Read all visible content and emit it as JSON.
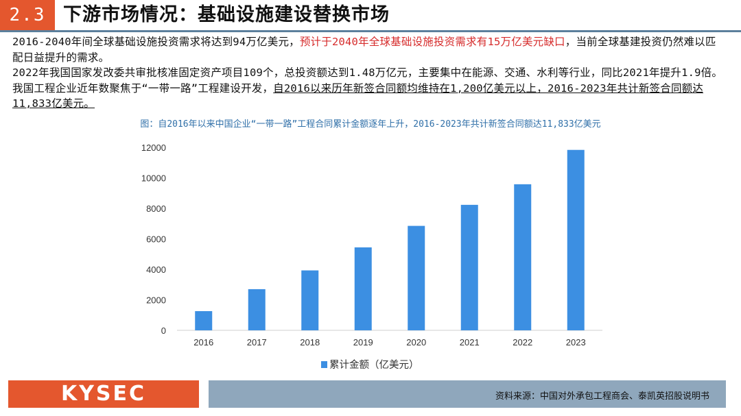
{
  "header": {
    "section_number": "2.3",
    "title": "下游市场情况：基础设施建设替换市场"
  },
  "body": {
    "para1_normal": "2016-2040年间全球基础设施投资需求将达到94万亿美元，",
    "para1_highlight": "预计于2040年全球基础设施投资需求有15万亿美元缺口",
    "para1_tail": "，当前全球基建投资仍然难以匹配日益提升的需求。",
    "para2_normal": "2022年我国国家发改委共审批核准固定资产项目109个，总投资额达到1.48万亿元，主要集中在能源、交通、水利等行业，同比2021年提升1.9倍。我国工程企业近年数聚焦于“一带一路”工程建设开发，",
    "para2_underline": "自2016以来历年新签合同额均维持在1,200亿美元以上，2016-2023年共计新签合同额达11,833亿美元。"
  },
  "figure": {
    "caption": "图：自2016年以来中国企业“一带一路”工程合同累计金额逐年上升，2016-2023年共计新签合同额达11,833亿美元"
  },
  "chart_data": {
    "type": "bar",
    "categories": [
      "2016",
      "2017",
      "2018",
      "2019",
      "2020",
      "2021",
      "2022",
      "2023"
    ],
    "series": [
      {
        "name": "累计金额（亿美元）",
        "values": [
          1260,
          2700,
          3930,
          5440,
          6850,
          8230,
          9580,
          11833
        ]
      }
    ],
    "ylim": [
      0,
      12000
    ],
    "yticks": [
      "0",
      "2000",
      "4000",
      "6000",
      "8000",
      "10000",
      "12000"
    ],
    "title": "",
    "xlabel": "",
    "ylabel": "",
    "legend_position": "bottom",
    "bar_color": "#3c8fe2"
  },
  "footer": {
    "logo": "KYSEC",
    "source": "资料来源：中国对外承包工程商会、泰凯英招股说明书"
  },
  "colors": {
    "accent": "#e4572e",
    "rule": "#5b7f9c",
    "highlight": "#d62b2b",
    "caption": "#2f6fa8",
    "source_bg": "#8fa7bc"
  }
}
